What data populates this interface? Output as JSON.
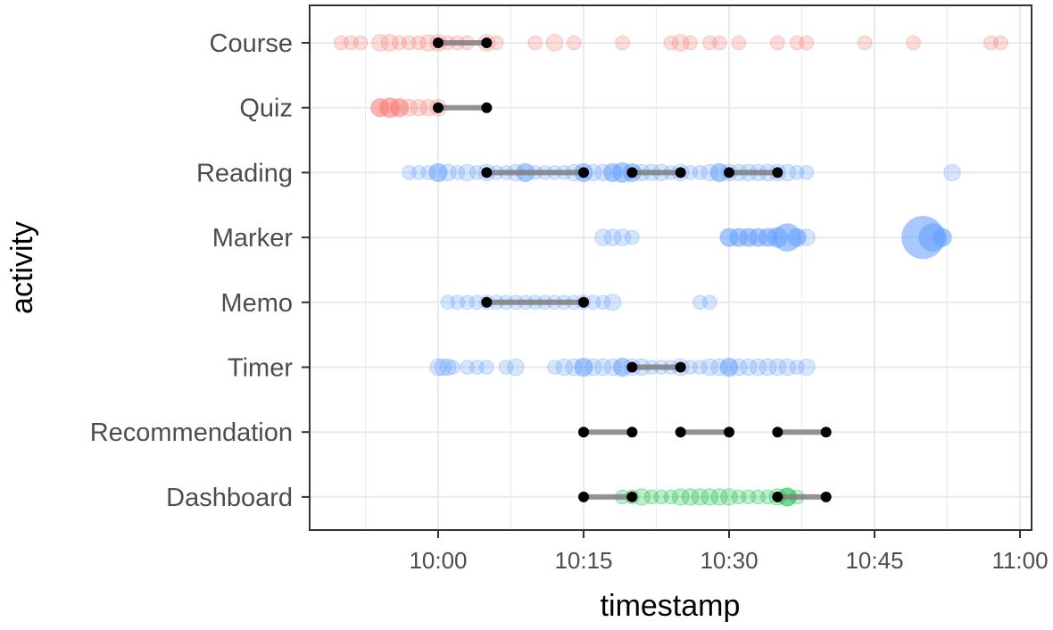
{
  "chart_data": {
    "type": "scatter",
    "title": "",
    "xlabel": "timestamp",
    "ylabel": "activity",
    "x_ticks": [
      "10:00",
      "10:15",
      "10:30",
      "10:45",
      "11:00"
    ],
    "x_tick_minutes": [
      0,
      15,
      30,
      45,
      60
    ],
    "xlim_minutes": [
      -33,
      62
    ],
    "categories": [
      "Course",
      "Quiz",
      "Reading",
      "Marker",
      "Memo",
      "Timer",
      "Recommendation",
      "Dashboard"
    ],
    "grid": true,
    "legend": "none",
    "colors": {
      "course_quiz": "#f8766d",
      "reading_marker_memo_timer": "#619cff",
      "dashboard": "#00ba38",
      "segment": "#808080",
      "endpoint": "#000000",
      "grid": "#ebebeb",
      "panel_border": "#333333"
    },
    "segments": [
      {
        "activity": "Course",
        "start": "10:00",
        "end": "10:05"
      },
      {
        "activity": "Quiz",
        "start": "10:00",
        "end": "10:05"
      },
      {
        "activity": "Reading",
        "start": "10:05",
        "end": "10:15"
      },
      {
        "activity": "Reading",
        "start": "10:20",
        "end": "10:25"
      },
      {
        "activity": "Reading",
        "start": "10:30",
        "end": "10:35"
      },
      {
        "activity": "Memo",
        "start": "10:05",
        "end": "10:15"
      },
      {
        "activity": "Timer",
        "start": "10:20",
        "end": "10:25"
      },
      {
        "activity": "Recommendation",
        "start": "10:15",
        "end": "10:20"
      },
      {
        "activity": "Recommendation",
        "start": "10:25",
        "end": "10:30"
      },
      {
        "activity": "Recommendation",
        "start": "10:35",
        "end": "10:40"
      },
      {
        "activity": "Dashboard",
        "start": "10:15",
        "end": "10:20"
      },
      {
        "activity": "Dashboard",
        "start": "10:35",
        "end": "10:40"
      }
    ],
    "series": [
      {
        "activity": "Course",
        "color": "#f8766d",
        "points": [
          [
            -10,
            1
          ],
          [
            -9,
            1
          ],
          [
            -8,
            1
          ],
          [
            -6,
            2
          ],
          [
            -5,
            2
          ],
          [
            -4,
            1
          ],
          [
            -3,
            1
          ],
          [
            -2,
            1
          ],
          [
            -1,
            2
          ],
          [
            0,
            2
          ],
          [
            1,
            1
          ],
          [
            2,
            1
          ],
          [
            3,
            1
          ],
          [
            5,
            2
          ],
          [
            6,
            1
          ],
          [
            10,
            1
          ],
          [
            12,
            2
          ],
          [
            14,
            1
          ],
          [
            19,
            1
          ],
          [
            24,
            1
          ],
          [
            25,
            2
          ],
          [
            26,
            1
          ],
          [
            28,
            1
          ],
          [
            29,
            1
          ],
          [
            31,
            1
          ],
          [
            35,
            1
          ],
          [
            37,
            1
          ],
          [
            38,
            1
          ],
          [
            44,
            1
          ],
          [
            49,
            1
          ],
          [
            57,
            1
          ],
          [
            58,
            1
          ]
        ]
      },
      {
        "activity": "Quiz",
        "color": "#f8766d",
        "points": [
          [
            -6,
            3
          ],
          [
            -5,
            4
          ],
          [
            -4,
            3
          ],
          [
            -3,
            2
          ],
          [
            -2,
            2
          ],
          [
            -1,
            2
          ],
          [
            0,
            2
          ]
        ]
      },
      {
        "activity": "Reading",
        "color": "#619cff",
        "points": [
          [
            -3,
            1
          ],
          [
            -2,
            1
          ],
          [
            -1,
            1
          ],
          [
            0,
            3
          ],
          [
            1,
            2
          ],
          [
            2,
            1
          ],
          [
            3,
            2
          ],
          [
            4,
            1
          ],
          [
            5,
            2
          ],
          [
            6,
            1
          ],
          [
            7,
            1
          ],
          [
            8,
            2
          ],
          [
            9,
            3
          ],
          [
            10,
            1
          ],
          [
            11,
            1
          ],
          [
            12,
            1
          ],
          [
            13,
            1
          ],
          [
            14,
            2
          ],
          [
            15,
            3
          ],
          [
            16,
            2
          ],
          [
            17,
            2
          ],
          [
            18,
            3
          ],
          [
            19,
            4
          ],
          [
            20,
            3
          ],
          [
            21,
            2
          ],
          [
            22,
            2
          ],
          [
            23,
            2
          ],
          [
            24,
            1
          ],
          [
            25,
            2
          ],
          [
            26,
            1
          ],
          [
            27,
            1
          ],
          [
            28,
            2
          ],
          [
            29,
            3
          ],
          [
            30,
            2
          ],
          [
            31,
            2
          ],
          [
            32,
            2
          ],
          [
            33,
            2
          ],
          [
            34,
            2
          ],
          [
            35,
            2
          ],
          [
            36,
            2
          ],
          [
            37,
            1
          ],
          [
            38,
            1
          ],
          [
            53,
            2
          ]
        ]
      },
      {
        "activity": "Marker",
        "color": "#619cff",
        "points": [
          [
            17,
            2
          ],
          [
            18,
            2
          ],
          [
            19,
            2
          ],
          [
            20,
            1
          ],
          [
            30,
            3
          ],
          [
            31,
            3
          ],
          [
            32,
            3
          ],
          [
            33,
            3
          ],
          [
            34,
            3
          ],
          [
            35,
            4
          ],
          [
            36,
            5
          ],
          [
            37,
            3
          ],
          [
            38,
            2
          ],
          [
            50,
            7
          ],
          [
            51,
            5
          ],
          [
            52,
            3
          ]
        ]
      },
      {
        "activity": "Memo",
        "color": "#619cff",
        "points": [
          [
            1,
            1
          ],
          [
            2,
            1
          ],
          [
            3,
            1
          ],
          [
            4,
            1
          ],
          [
            5,
            1
          ],
          [
            6,
            1
          ],
          [
            7,
            1
          ],
          [
            8,
            1
          ],
          [
            9,
            1
          ],
          [
            10,
            1
          ],
          [
            11,
            1
          ],
          [
            12,
            1
          ],
          [
            13,
            1
          ],
          [
            14,
            1
          ],
          [
            15,
            1
          ],
          [
            16,
            1
          ],
          [
            17,
            1
          ],
          [
            18,
            2
          ],
          [
            27,
            1
          ],
          [
            28,
            1
          ]
        ]
      },
      {
        "activity": "Timer",
        "color": "#619cff",
        "points": [
          [
            0,
            2
          ],
          [
            0.5,
            2
          ],
          [
            1,
            2
          ],
          [
            1.5,
            1
          ],
          [
            3,
            1
          ],
          [
            4,
            1
          ],
          [
            5,
            1
          ],
          [
            7,
            1
          ],
          [
            8,
            2
          ],
          [
            12,
            1
          ],
          [
            13,
            2
          ],
          [
            14,
            2
          ],
          [
            15,
            3
          ],
          [
            16,
            2
          ],
          [
            17,
            2
          ],
          [
            18,
            2
          ],
          [
            19,
            3
          ],
          [
            20,
            2
          ],
          [
            21,
            2
          ],
          [
            22,
            1
          ],
          [
            23,
            1
          ],
          [
            24,
            1
          ],
          [
            25,
            2
          ],
          [
            26,
            1
          ],
          [
            27,
            1
          ],
          [
            28,
            2
          ],
          [
            29,
            2
          ],
          [
            30,
            3
          ],
          [
            31,
            2
          ],
          [
            32,
            2
          ],
          [
            33,
            2
          ],
          [
            34,
            2
          ],
          [
            35,
            2
          ],
          [
            36,
            2
          ],
          [
            37,
            1
          ],
          [
            38,
            2
          ]
        ]
      },
      {
        "activity": "Recommendation",
        "color": "#619cff",
        "points": []
      },
      {
        "activity": "Dashboard",
        "color": "#00ba38",
        "points": [
          [
            19,
            1
          ],
          [
            20,
            1
          ],
          [
            21,
            2
          ],
          [
            22,
            1
          ],
          [
            23,
            1
          ],
          [
            24,
            1
          ],
          [
            25,
            2
          ],
          [
            26,
            2
          ],
          [
            27,
            2
          ],
          [
            28,
            2
          ],
          [
            29,
            2
          ],
          [
            30,
            2
          ],
          [
            31,
            1
          ],
          [
            32,
            1
          ],
          [
            33,
            1
          ],
          [
            34,
            1
          ],
          [
            35,
            2
          ],
          [
            36,
            3
          ],
          [
            37,
            1
          ]
        ]
      }
    ]
  }
}
